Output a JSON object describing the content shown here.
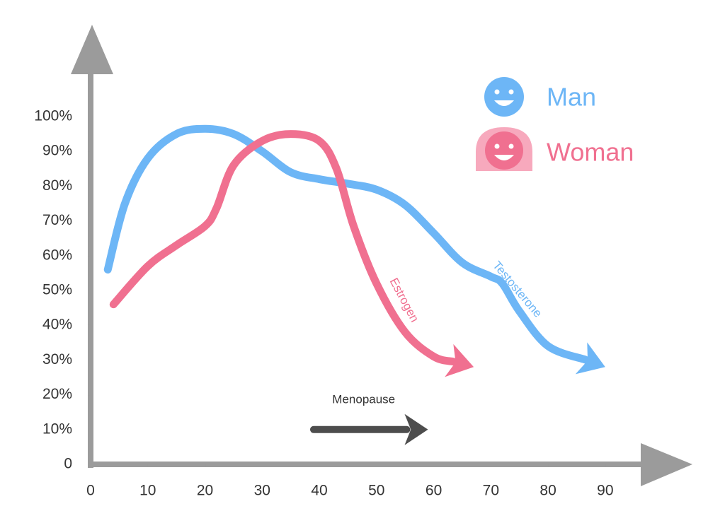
{
  "chart_data": {
    "type": "line",
    "xlim": [
      0,
      105
    ],
    "ylim": [
      0,
      125
    ],
    "xticks": [
      0,
      10,
      20,
      30,
      40,
      50,
      60,
      70,
      80,
      90
    ],
    "yticks": [
      0,
      {
        "value": 10,
        "label": "10%"
      },
      {
        "value": 20,
        "label": "20%"
      },
      {
        "value": 30,
        "label": "30%"
      },
      {
        "value": 40,
        "label": "40%"
      },
      {
        "value": 50,
        "label": "50%"
      },
      {
        "value": 60,
        "label": "60%"
      },
      {
        "value": 70,
        "label": "70%"
      },
      {
        "value": 80,
        "label": "80%"
      },
      {
        "value": 90,
        "label": "90%"
      },
      {
        "value": 100,
        "label": "100%"
      }
    ],
    "series": [
      {
        "name": "Testosterone",
        "legend_label": "Man",
        "color": "#6db6f6",
        "x": [
          3,
          6,
          10,
          15,
          20,
          25,
          30,
          35,
          40,
          45,
          50,
          55,
          60,
          65,
          70,
          72,
          75,
          80,
          90
        ],
        "values": [
          56,
          75,
          88,
          95,
          96.5,
          95,
          90,
          84,
          82,
          80.7,
          79,
          74.6,
          66.5,
          58,
          54,
          52,
          44,
          34,
          28
        ]
      },
      {
        "name": "Estrogen",
        "legend_label": "Woman",
        "color": "#f07090",
        "x": [
          4,
          10,
          15,
          20,
          22,
          25,
          30,
          35,
          40,
          43,
          46,
          50,
          55,
          60,
          67
        ],
        "values": [
          46,
          57,
          63,
          68.5,
          73.6,
          86,
          93,
          95,
          93,
          85,
          68.5,
          52,
          38,
          31,
          28
        ]
      }
    ],
    "annotation": {
      "text": "Menopause",
      "x": [
        39,
        59
      ],
      "y": 10,
      "color": "#4d4d4d"
    }
  }
}
